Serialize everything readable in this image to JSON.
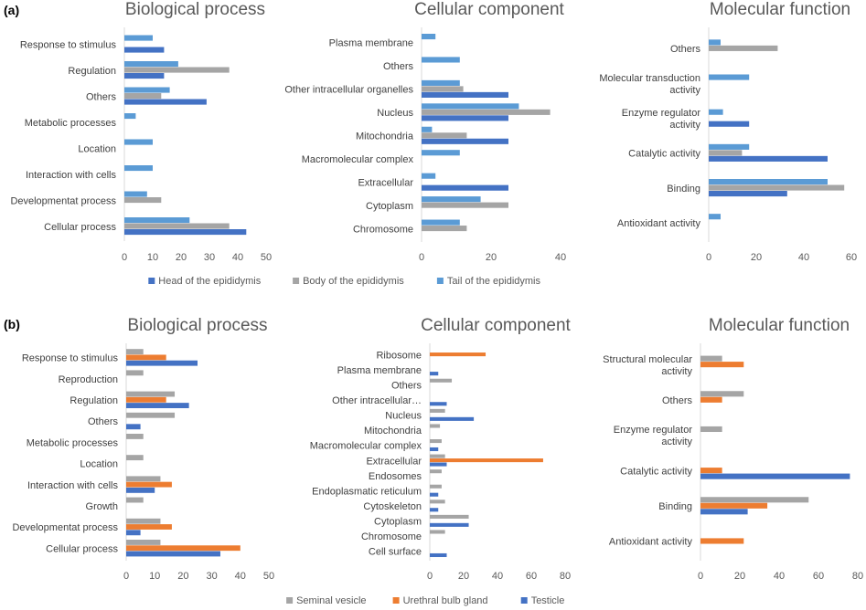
{
  "panel_labels": [
    "(a)",
    "(b)"
  ],
  "colors": {
    "head": "#4472c4",
    "body": "#a5a5a5",
    "tail": "#5b9bd5",
    "seminal": "#a5a5a5",
    "urethral": "#ed7d31",
    "testicle": "#4472c4"
  },
  "legends": [
    {
      "items": [
        {
          "label": "Head of the epididymis",
          "color": "#4472c4"
        },
        {
          "label": "Body of the epididymis",
          "color": "#a5a5a5"
        },
        {
          "label": "Tail of the epididymis",
          "color": "#5b9bd5"
        }
      ]
    },
    {
      "items": [
        {
          "label": "Seminal vesicle",
          "color": "#a5a5a5"
        },
        {
          "label": "Urethral bulb gland",
          "color": "#ed7d31"
        },
        {
          "label": "Testicle",
          "color": "#4472c4"
        }
      ]
    }
  ],
  "chart_data": [
    {
      "type": "bar",
      "orientation": "horizontal",
      "title": "Biological process",
      "categories": [
        "Response to stimulus",
        "Regulation",
        "Others",
        "Metabolic processes",
        "Location",
        "Interaction with cells",
        "Developmentat process",
        "Cellular process"
      ],
      "series": [
        {
          "name": "Tail of the epididymis",
          "color": "#5b9bd5",
          "values": [
            10,
            19,
            16,
            4,
            10,
            10,
            8,
            23
          ]
        },
        {
          "name": "Body of the epididymis",
          "color": "#a5a5a5",
          "values": [
            0,
            37,
            13,
            0,
            0,
            0,
            13,
            37
          ]
        },
        {
          "name": "Head of the epididymis",
          "color": "#4472c4",
          "values": [
            14,
            14,
            29,
            0,
            0,
            0,
            0,
            43
          ]
        }
      ],
      "xlim": [
        0,
        50
      ],
      "ticks": [
        0,
        10,
        20,
        30,
        40,
        50
      ],
      "grid": false
    },
    {
      "type": "bar",
      "orientation": "horizontal",
      "title": "Cellular component",
      "categories": [
        "Plasma membrane",
        "Others",
        "Other intracellular organelles",
        "Nucleus",
        "Mitochondria",
        "Macromolecular complex",
        "Extracellular",
        "Cytoplasm",
        "Chromosome"
      ],
      "series": [
        {
          "name": "Tail of the epididymis",
          "color": "#5b9bd5",
          "values": [
            4,
            11,
            11,
            28,
            3,
            11,
            4,
            17,
            11
          ]
        },
        {
          "name": "Body of the epididymis",
          "color": "#a5a5a5",
          "values": [
            0,
            0,
            12,
            37,
            13,
            0,
            0,
            25,
            13
          ]
        },
        {
          "name": "Head of the epididymis",
          "color": "#4472c4",
          "values": [
            0,
            0,
            25,
            25,
            25,
            0,
            25,
            0,
            0
          ]
        }
      ],
      "xlim": [
        0,
        40
      ],
      "ticks": [
        0,
        20,
        40
      ],
      "grid": false
    },
    {
      "type": "bar",
      "orientation": "horizontal",
      "title": "Molecular function",
      "categories": [
        "Others",
        "Molecular transduction activity",
        "Enzyme regulator activity",
        "Catalytic activity",
        "Binding",
        "Antioxidant activity"
      ],
      "series": [
        {
          "name": "Tail of the epididymis",
          "color": "#5b9bd5",
          "values": [
            5,
            17,
            6,
            17,
            50,
            5
          ]
        },
        {
          "name": "Body of the epididymis",
          "color": "#a5a5a5",
          "values": [
            29,
            0,
            0,
            14,
            57,
            0
          ]
        },
        {
          "name": "Head of the epididymis",
          "color": "#4472c4",
          "values": [
            0,
            0,
            17,
            50,
            33,
            0
          ]
        }
      ],
      "xlim": [
        0,
        60
      ],
      "ticks": [
        0,
        20,
        40,
        60
      ],
      "grid": false
    },
    {
      "type": "bar",
      "orientation": "horizontal",
      "title": "Biological process",
      "categories": [
        "Response to stimulus",
        "Reproduction",
        "Regulation",
        "Others",
        "Metabolic processes",
        "Location",
        "Interaction with cells",
        "Growth",
        "Developmentat process",
        "Cellular process"
      ],
      "series": [
        {
          "name": "Seminal vesicle",
          "color": "#a5a5a5",
          "values": [
            6,
            6,
            17,
            17,
            6,
            6,
            12,
            6,
            12,
            12
          ]
        },
        {
          "name": "Urethral bulb gland",
          "color": "#ed7d31",
          "values": [
            14,
            0,
            14,
            0,
            0,
            0,
            16,
            0,
            16,
            40
          ]
        },
        {
          "name": "Testicle",
          "color": "#4472c4",
          "values": [
            25,
            0,
            22,
            5,
            0,
            0,
            10,
            0,
            5,
            33
          ]
        }
      ],
      "xlim": [
        0,
        50
      ],
      "ticks": [
        0,
        10,
        20,
        30,
        40,
        50
      ],
      "grid": false
    },
    {
      "type": "bar",
      "orientation": "horizontal",
      "title": "Cellular component",
      "categories": [
        "Ribosome",
        "Plasma membrane",
        "Others",
        "Other intracellular…",
        "Nucleus",
        "Mitochondria",
        "Macromolecular complex",
        "Extracellular",
        "Endosomes",
        "Endoplasmatic reticulum",
        "Cytoskeleton",
        "Cytoplasm",
        "Chromosome",
        "Cell surface"
      ],
      "series": [
        {
          "name": "Seminal vesicle",
          "color": "#a5a5a5",
          "values": [
            0,
            0,
            13,
            0,
            9,
            6,
            7,
            9,
            7,
            7,
            9,
            23,
            9,
            0
          ]
        },
        {
          "name": "Urethral bulb gland",
          "color": "#ed7d31",
          "values": [
            33,
            0,
            0,
            0,
            0,
            0,
            0,
            67,
            0,
            0,
            0,
            0,
            0,
            0
          ]
        },
        {
          "name": "Testicle",
          "color": "#4472c4",
          "values": [
            0,
            5,
            0,
            10,
            26,
            0,
            5,
            10,
            0,
            5,
            5,
            23,
            0,
            10
          ]
        }
      ],
      "xlim": [
        0,
        80
      ],
      "ticks": [
        0,
        20,
        40,
        60,
        80
      ],
      "grid": false
    },
    {
      "type": "bar",
      "orientation": "horizontal",
      "title": "Molecular function",
      "categories": [
        "Structural molecular activity",
        "Others",
        "Enzyme regulator activity",
        "Catalytic activity",
        "Binding",
        "Antioxidant activity"
      ],
      "series": [
        {
          "name": "Seminal vesicle",
          "color": "#a5a5a5",
          "values": [
            11,
            22,
            11,
            0,
            55,
            0
          ]
        },
        {
          "name": "Urethral bulb gland",
          "color": "#ed7d31",
          "values": [
            22,
            11,
            0,
            11,
            34,
            22
          ]
        },
        {
          "name": "Testicle",
          "color": "#4472c4",
          "values": [
            0,
            0,
            0,
            76,
            24,
            0
          ]
        }
      ],
      "xlim": [
        0,
        80
      ],
      "ticks": [
        0,
        20,
        40,
        60,
        80
      ],
      "grid": false
    }
  ]
}
